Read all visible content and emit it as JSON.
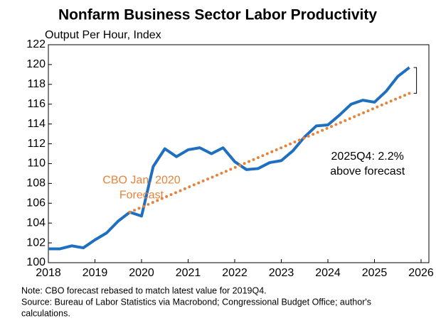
{
  "chart_data": {
    "type": "line",
    "title": "Nonfarm Business Sector Labor Productivity",
    "subtitle": "Output Per Hour, Index",
    "series": [
      {
        "name": "Labor productivity",
        "color": "#1f6fc0",
        "style": "solid",
        "x": [
          2018.0,
          2018.25,
          2018.5,
          2018.75,
          2019.0,
          2019.25,
          2019.5,
          2019.75,
          2020.0,
          2020.25,
          2020.5,
          2020.75,
          2021.0,
          2021.25,
          2021.5,
          2021.75,
          2022.0,
          2022.25,
          2022.5,
          2022.75,
          2023.0,
          2023.25,
          2023.5,
          2023.75,
          2024.0,
          2024.25,
          2024.5,
          2024.75,
          2025.0,
          2025.25,
          2025.5,
          2025.75
        ],
        "values": [
          101.4,
          101.4,
          101.7,
          101.5,
          102.3,
          103.0,
          104.2,
          105.1,
          104.7,
          109.7,
          111.5,
          110.7,
          111.4,
          111.6,
          111.0,
          111.6,
          110.2,
          109.4,
          109.5,
          110.1,
          110.3,
          111.3,
          112.7,
          113.8,
          113.9,
          114.9,
          116.0,
          116.4,
          116.2,
          117.3,
          118.8,
          119.7
        ]
      },
      {
        "name": "CBO Jan. 2020 forecast",
        "color": "#e8823a",
        "style": "dotted",
        "x": [
          2019.75,
          2025.75
        ],
        "values": [
          105.1,
          117.1
        ]
      }
    ],
    "annotations": [
      {
        "lines": [
          "CBO Jan. 2020",
          "Forecast"
        ],
        "color": "#e8823a",
        "x": 2020.0,
        "y": 108.3
      },
      {
        "lines": [
          "2025Q4: 2.2%",
          "above forecast"
        ],
        "color": "#000000",
        "x": 2024.85,
        "y": 110.7
      }
    ],
    "xlim": [
      2018,
      2026
    ],
    "xticks": [
      2018,
      2019,
      2020,
      2021,
      2022,
      2023,
      2024,
      2025,
      2026
    ],
    "ylim": [
      100,
      122
    ],
    "yticks": [
      100,
      102,
      104,
      106,
      108,
      110,
      112,
      114,
      116,
      118,
      120,
      122
    ],
    "notes": [
      "Note: CBO forecast rebased to match latest value for 2019Q4.",
      "Source: Bureau of Labor Statistics via Macrobond; Congressional Budget Office; author's",
      "calculations."
    ]
  }
}
